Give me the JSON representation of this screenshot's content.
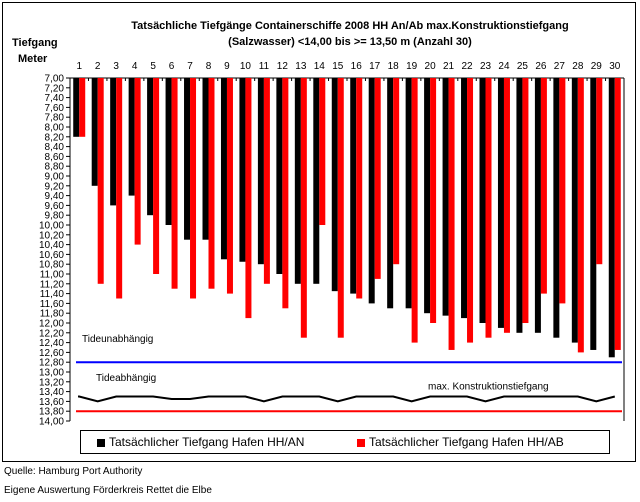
{
  "chart_data": {
    "type": "bar",
    "title_line1": "Tatsächliche Tiefgänge Containerschiffe 2008 HH An/Ab max.Konstruktionstiefgang",
    "title_line2": "(Salzwasser) <14,00 bis >= 13,50 m (Anzahl 30)",
    "ylabel_line1": "Tiefgang",
    "ylabel_line2": "Meter",
    "categories": [
      "1",
      "2",
      "3",
      "4",
      "5",
      "6",
      "7",
      "8",
      "9",
      "10",
      "11",
      "12",
      "13",
      "14",
      "15",
      "16",
      "17",
      "18",
      "19",
      "20",
      "21",
      "22",
      "23",
      "24",
      "25",
      "26",
      "27",
      "28",
      "29",
      "30"
    ],
    "ylim": [
      7.0,
      14.0
    ],
    "y_ticks": [
      "7,00",
      "7,20",
      "7,40",
      "7,60",
      "7,80",
      "8,00",
      "8,20",
      "8,40",
      "8,60",
      "8,80",
      "9,00",
      "9,20",
      "9,40",
      "9,60",
      "9,80",
      "10,00",
      "10,20",
      "10,40",
      "10,60",
      "10,80",
      "11,00",
      "11,20",
      "11,40",
      "11,60",
      "11,80",
      "12,00",
      "12,20",
      "12,40",
      "12,60",
      "12,80",
      "13,00",
      "13,20",
      "13,40",
      "13,60",
      "13,80",
      "14,00"
    ],
    "y_inverted": true,
    "grid": false,
    "series": [
      {
        "name": "Tatsächlicher Tiefgang Hafen HH/AN",
        "color": "#000000",
        "values": [
          8.2,
          9.2,
          9.6,
          9.4,
          9.8,
          10.0,
          10.3,
          10.3,
          10.7,
          10.75,
          10.8,
          11.0,
          11.2,
          11.2,
          11.35,
          11.4,
          11.6,
          11.7,
          11.7,
          11.8,
          11.85,
          11.9,
          12.0,
          12.1,
          12.2,
          12.2,
          12.3,
          12.4,
          12.55,
          12.7
        ]
      },
      {
        "name": "Tatsächlicher Tiefgang Hafen HH/AB",
        "color": "#ff0000",
        "values": [
          8.2,
          11.2,
          11.5,
          10.4,
          11.0,
          11.3,
          11.5,
          11.3,
          11.4,
          11.9,
          11.2,
          11.7,
          12.3,
          10.0,
          12.3,
          11.5,
          11.1,
          10.8,
          12.4,
          12.0,
          12.55,
          12.4,
          12.3,
          12.2,
          12.0,
          11.4,
          11.6,
          12.6,
          10.8,
          12.55
        ]
      }
    ],
    "reference_lines": [
      {
        "label": "Tideunabhängig",
        "value": 12.8,
        "color": "#0000ff"
      },
      {
        "label": "max. Konstruktionstiefgang",
        "value": 13.8,
        "color": "#ff0000"
      }
    ],
    "wave_label": "Tideabhängig",
    "wave_values": [
      13.5,
      13.6,
      13.5,
      13.5,
      13.5,
      13.55,
      13.55,
      13.5,
      13.5,
      13.5,
      13.6,
      13.5,
      13.5,
      13.5,
      13.6,
      13.5,
      13.5,
      13.5,
      13.6,
      13.5,
      13.5,
      13.5,
      13.6,
      13.5,
      13.5,
      13.5,
      13.5,
      13.5,
      13.6,
      13.5
    ],
    "legend_position": "bottom"
  },
  "footer": {
    "source": "Quelle: Hamburg Port Authority",
    "analysis": "Eigene Auswertung Förderkreis Rettet die Elbe"
  }
}
